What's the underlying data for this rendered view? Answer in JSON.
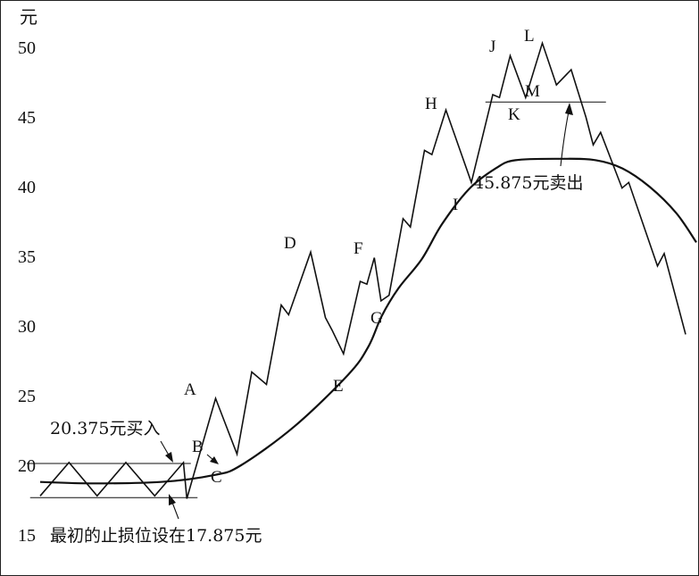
{
  "chart_data": {
    "type": "line",
    "y_unit": "元",
    "y_ticks": [
      50,
      45,
      40,
      35,
      30,
      25,
      20,
      15
    ],
    "ylim": [
      15,
      51.5
    ],
    "x_range": [
      0,
      100
    ],
    "price_series": [
      [
        2,
        17.8
      ],
      [
        6.3,
        20.2
      ],
      [
        10.5,
        17.8
      ],
      [
        14.8,
        20.2
      ],
      [
        19.1,
        17.8
      ],
      [
        23.4,
        20.2
      ],
      [
        23.9,
        17.6
      ],
      [
        28.2,
        24.8
      ],
      [
        31.4,
        20.8
      ],
      [
        33.6,
        26.7
      ],
      [
        35.8,
        25.8
      ],
      [
        38,
        31.5
      ],
      [
        39.1,
        30.8
      ],
      [
        42.4,
        35.3
      ],
      [
        44.6,
        30.6
      ],
      [
        45.6,
        29.7
      ],
      [
        47.3,
        28.0
      ],
      [
        49.8,
        33.2
      ],
      [
        50.8,
        33.0
      ],
      [
        51.9,
        34.9
      ],
      [
        52.9,
        31.8
      ],
      [
        54.1,
        32.2
      ],
      [
        56.2,
        37.7
      ],
      [
        57.3,
        37.1
      ],
      [
        59.4,
        42.6
      ],
      [
        60.5,
        42.3
      ],
      [
        62.6,
        45.5
      ],
      [
        66.4,
        40.3
      ],
      [
        69.6,
        46.6
      ],
      [
        70.6,
        46.4
      ],
      [
        72.2,
        49.4
      ],
      [
        74.5,
        46.4
      ],
      [
        77,
        50.3
      ],
      [
        79.1,
        47.3
      ],
      [
        81.3,
        48.4
      ],
      [
        83.5,
        45.0
      ],
      [
        84.6,
        43.0
      ],
      [
        85.7,
        43.9
      ],
      [
        88.9,
        39.9
      ],
      [
        89.9,
        40.3
      ],
      [
        94.2,
        34.3
      ],
      [
        95.2,
        35.2
      ],
      [
        98.4,
        29.4
      ]
    ],
    "moving_average": [
      [
        2,
        18.8
      ],
      [
        10,
        18.7
      ],
      [
        20,
        18.8
      ],
      [
        28,
        19.3
      ],
      [
        32,
        20.0
      ],
      [
        40,
        22.8
      ],
      [
        48,
        26.5
      ],
      [
        51,
        28.5
      ],
      [
        53,
        30.7
      ],
      [
        55.5,
        32.7
      ],
      [
        59,
        34.8
      ],
      [
        62,
        37.3
      ],
      [
        66,
        39.8
      ],
      [
        70,
        41.3
      ],
      [
        73,
        41.9
      ],
      [
        80,
        42.0
      ],
      [
        85,
        41.9
      ],
      [
        89,
        41.3
      ],
      [
        93,
        40.0
      ],
      [
        97,
        38.1
      ],
      [
        100,
        36.0
      ]
    ],
    "point_labels": [
      "A",
      "B",
      "C",
      "D",
      "E",
      "F",
      "G",
      "H",
      "I",
      "J",
      "K",
      "L",
      "M"
    ],
    "buy_annotation": "20.375元买入",
    "sell_annotation": "45.875元卖出",
    "stop_annotation": "最初的止损位设在17.875元",
    "buy_price": 20.375,
    "sell_price": 45.875,
    "stop_price": 17.875
  }
}
